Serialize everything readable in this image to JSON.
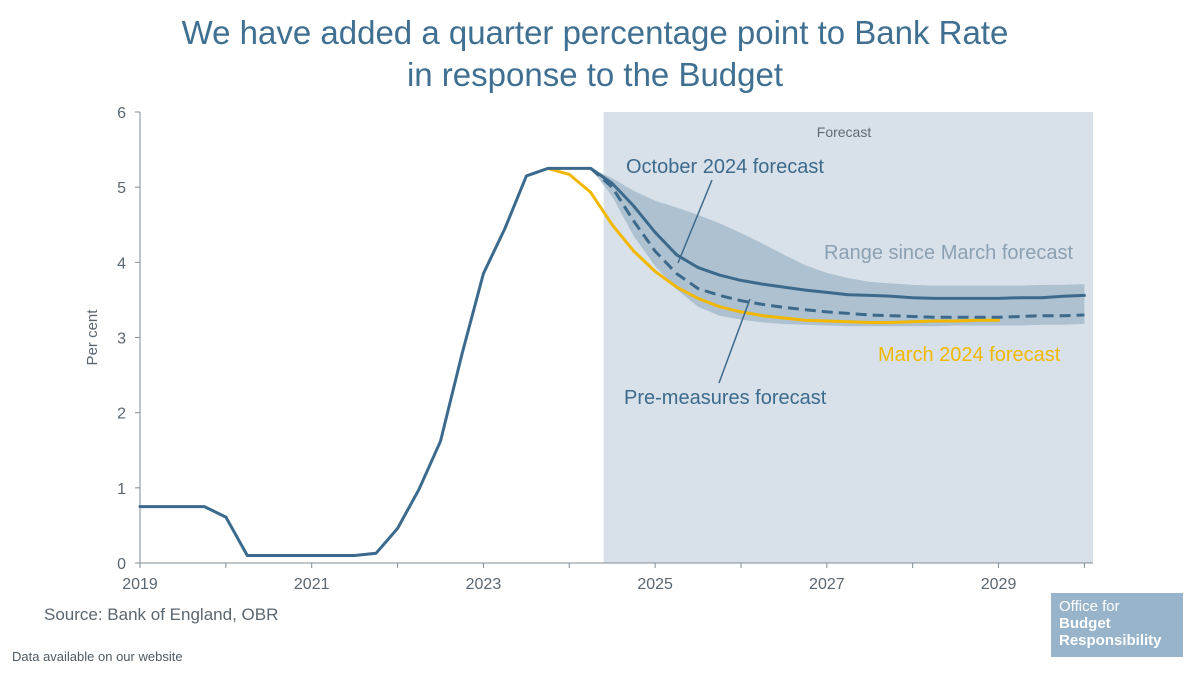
{
  "title_line1": "We have added a quarter percentage point to Bank Rate",
  "title_line2": "in response to the Budget",
  "source": "Source: Bank of England, OBR",
  "footer": "Data available on our website",
  "logo": {
    "line1": "Office for",
    "line2": "Budget",
    "line3": "Responsibility"
  },
  "colors": {
    "title": "#3f6f91",
    "october": "#3c6a8c",
    "premeasures": "#3c6a8c",
    "march": "#f2b800",
    "range": "#9fb6c8",
    "forecast_bg": "#d8e1e9",
    "axis": "#7f8c95"
  },
  "chart_data": {
    "type": "line",
    "ylabel": "Per cent",
    "ylim": [
      0,
      6
    ],
    "xlim": [
      2019,
      2030.1
    ],
    "yticks": [
      0,
      1,
      2,
      3,
      4,
      5,
      6
    ],
    "xticks": [
      2019,
      2021,
      2023,
      2025,
      2027,
      2029
    ],
    "forecast_start": 2024.4,
    "forecast_label": "Forecast",
    "annotations": {
      "october": "October 2024 forecast",
      "range": "Range since March forecast",
      "march": "March 2024 forecast",
      "premeasures": "Pre-measures forecast"
    },
    "series": [
      {
        "name": "October 2024 forecast",
        "key": "october",
        "style": "solid",
        "x": [
          2019,
          2019.25,
          2019.5,
          2019.75,
          2020,
          2020.25,
          2020.5,
          2020.75,
          2021,
          2021.25,
          2021.5,
          2021.75,
          2022,
          2022.25,
          2022.5,
          2022.75,
          2023,
          2023.25,
          2023.5,
          2023.75,
          2024,
          2024.25,
          2024.5,
          2024.75,
          2025,
          2025.25,
          2025.5,
          2025.75,
          2026,
          2026.25,
          2026.5,
          2026.75,
          2027,
          2027.25,
          2027.5,
          2027.75,
          2028,
          2028.25,
          2028.5,
          2028.75,
          2029,
          2029.25,
          2029.5,
          2029.75,
          2030
        ],
        "values": [
          0.75,
          0.75,
          0.75,
          0.75,
          0.61,
          0.1,
          0.1,
          0.1,
          0.1,
          0.1,
          0.1,
          0.13,
          0.46,
          0.98,
          1.62,
          2.78,
          3.85,
          4.45,
          5.15,
          5.25,
          5.25,
          5.25,
          5.05,
          4.75,
          4.4,
          4.1,
          3.93,
          3.83,
          3.76,
          3.71,
          3.67,
          3.63,
          3.6,
          3.57,
          3.56,
          3.55,
          3.53,
          3.52,
          3.52,
          3.52,
          3.52,
          3.53,
          3.53,
          3.55,
          3.56
        ]
      },
      {
        "name": "Pre-measures forecast",
        "key": "premeasures",
        "style": "dashed",
        "x": [
          2024.25,
          2024.5,
          2024.75,
          2025,
          2025.25,
          2025.5,
          2025.75,
          2026,
          2026.25,
          2026.5,
          2026.75,
          2027,
          2027.25,
          2027.5,
          2027.75,
          2028,
          2028.25,
          2028.5,
          2028.75,
          2029,
          2029.25,
          2029.5,
          2029.75,
          2030
        ],
        "values": [
          5.25,
          5.0,
          4.55,
          4.15,
          3.85,
          3.65,
          3.56,
          3.49,
          3.44,
          3.4,
          3.37,
          3.34,
          3.32,
          3.3,
          3.29,
          3.28,
          3.27,
          3.27,
          3.27,
          3.27,
          3.28,
          3.29,
          3.29,
          3.3
        ]
      },
      {
        "name": "March 2024 forecast",
        "key": "march",
        "style": "solid",
        "x": [
          2023.75,
          2024,
          2024.25,
          2024.5,
          2024.75,
          2025,
          2025.25,
          2025.5,
          2025.75,
          2026,
          2026.25,
          2026.5,
          2026.75,
          2027,
          2027.25,
          2027.5,
          2027.75,
          2028,
          2028.25,
          2028.5,
          2028.75,
          2029
        ],
        "values": [
          5.25,
          5.17,
          4.93,
          4.5,
          4.15,
          3.88,
          3.67,
          3.52,
          3.41,
          3.34,
          3.29,
          3.26,
          3.23,
          3.22,
          3.21,
          3.2,
          3.2,
          3.21,
          3.22,
          3.22,
          3.23,
          3.23
        ]
      }
    ],
    "range": {
      "name": "Range since March forecast",
      "x": [
        2024.25,
        2024.5,
        2024.75,
        2025,
        2025.25,
        2025.5,
        2025.75,
        2026,
        2026.25,
        2026.5,
        2026.75,
        2027,
        2027.25,
        2027.5,
        2027.75,
        2028,
        2028.25,
        2028.5,
        2028.75,
        2029,
        2029.25,
        2029.5,
        2029.75,
        2030
      ],
      "upper": [
        5.25,
        5.12,
        4.95,
        4.82,
        4.73,
        4.63,
        4.52,
        4.39,
        4.25,
        4.1,
        3.96,
        3.86,
        3.79,
        3.74,
        3.72,
        3.7,
        3.69,
        3.69,
        3.69,
        3.69,
        3.69,
        3.7,
        3.7,
        3.71
      ],
      "lower": [
        5.25,
        4.88,
        4.35,
        3.95,
        3.64,
        3.41,
        3.29,
        3.24,
        3.2,
        3.18,
        3.17,
        3.16,
        3.15,
        3.15,
        3.15,
        3.15,
        3.15,
        3.16,
        3.16,
        3.16,
        3.16,
        3.17,
        3.17,
        3.18
      ]
    }
  }
}
